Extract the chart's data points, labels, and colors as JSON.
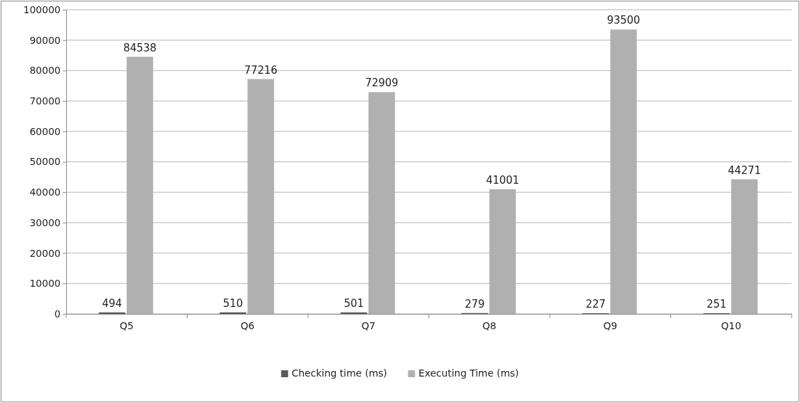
{
  "chart_data": {
    "type": "bar",
    "categories": [
      "Q5",
      "Q6",
      "Q7",
      "Q8",
      "Q9",
      "Q10"
    ],
    "series": [
      {
        "name": "Checking time (ms)",
        "color": "#595959",
        "values": [
          494,
          510,
          501,
          279,
          227,
          251
        ]
      },
      {
        "name": "Executing Time (ms)",
        "color": "#b0b0b0",
        "values": [
          84538,
          77216,
          72909,
          41001,
          93500,
          44271
        ]
      }
    ],
    "ylim": [
      0,
      100000
    ],
    "yticks": [
      0,
      10000,
      20000,
      30000,
      40000,
      50000,
      60000,
      70000,
      80000,
      90000,
      100000
    ],
    "grid": "y",
    "legend": "bottom",
    "data_labels": true
  }
}
